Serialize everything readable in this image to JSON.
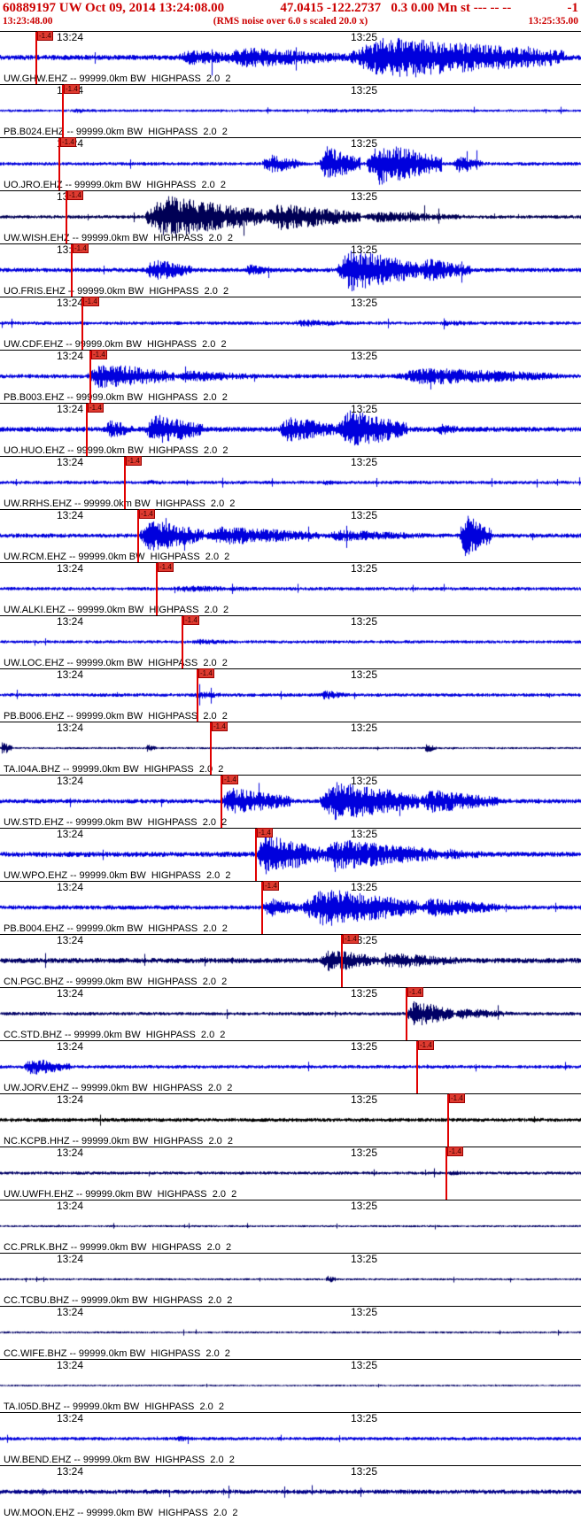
{
  "header": {
    "event_line": {
      "left": "60889197 UW Oct 09, 2014 13:24:08.00",
      "middle": "47.0415 -122.2737   0.3 0.00 Mn st --- -- --",
      "right": "-1"
    },
    "time_line": {
      "start": "13:23:48.00",
      "center": "(RMS noise over 6.0 s scaled 20.0 x)",
      "end": "13:25:35.00"
    }
  },
  "tick_labels": [
    "13:24",
    "13:25"
  ],
  "colors": {
    "header_red": "#cc0000",
    "pick_red": "#e00000",
    "trace_blue": "#0000dd",
    "trace_navy": "#000066",
    "trace_black": "#000000"
  },
  "traces": [
    {
      "label": "UW.GHW.EHZ -- 99999.0km BW  HIGHPASS  2.0  2",
      "color": "#0000dd",
      "pick": 0.061,
      "flag": "-1.4",
      "noise": 3,
      "bursts": [
        [
          0.3,
          0.45,
          8
        ],
        [
          0.38,
          0.6,
          11
        ],
        [
          0.6,
          0.97,
          21
        ]
      ]
    },
    {
      "label": "PB.B024.EHZ -- 99999.0km BW  HIGHPASS  2.0  2",
      "color": "#0000dd",
      "pick": 0.107,
      "flag": "-1.4",
      "noise": 1.5,
      "bursts": [
        [
          0.12,
          0.2,
          2.5
        ],
        [
          0.5,
          0.9,
          2
        ]
      ]
    },
    {
      "label": "UO.JRO.EHZ -- 99999.0km BW  HIGHPASS  2.0  2",
      "color": "#0000dd",
      "pick": 0.101,
      "flag": "-1.4",
      "noise": 2,
      "bursts": [
        [
          0.45,
          0.52,
          10
        ],
        [
          0.55,
          0.62,
          18
        ],
        [
          0.63,
          0.76,
          22
        ],
        [
          0.78,
          0.83,
          9
        ]
      ]
    },
    {
      "label": "UW.WISH.EHZ -- 99999.0km BW  HIGHPASS  2.0  2",
      "color": "#000055",
      "pick": 0.113,
      "flag": "-1.4",
      "noise": 2,
      "bursts": [
        [
          0.25,
          0.45,
          22
        ],
        [
          0.45,
          0.62,
          14
        ],
        [
          0.62,
          0.8,
          6
        ]
      ]
    },
    {
      "label": "UO.FRIS.EHZ -- 99999.0km BW  HIGHPASS  2.0  2",
      "color": "#0000dd",
      "pick": 0.122,
      "flag": "-1.4",
      "noise": 2.5,
      "bursts": [
        [
          0.25,
          0.33,
          12
        ],
        [
          0.42,
          0.47,
          6
        ],
        [
          0.58,
          0.72,
          22
        ],
        [
          0.72,
          0.81,
          12
        ]
      ]
    },
    {
      "label": "UW.CDF.EHZ -- 99999.0km BW  HIGHPASS  2.0  2",
      "color": "#0000dd",
      "pick": 0.14,
      "flag": "-1.4",
      "noise": 2,
      "bursts": [
        [
          0.5,
          0.62,
          4
        ],
        [
          0.75,
          0.85,
          3
        ]
      ]
    },
    {
      "label": "PB.B003.EHZ -- 99999.0km BW  HIGHPASS  2.0  2",
      "color": "#0000dd",
      "pick": 0.154,
      "flag": "-1.4",
      "noise": 2.5,
      "bursts": [
        [
          0.15,
          0.3,
          14
        ],
        [
          0.3,
          0.45,
          6
        ],
        [
          0.68,
          0.96,
          9
        ]
      ]
    },
    {
      "label": "UO.HUO.EHZ -- 99999.0km BW  HIGHPASS  2.0  2",
      "color": "#0000dd",
      "pick": 0.148,
      "flag": "-1.4",
      "noise": 3,
      "bursts": [
        [
          0.18,
          0.23,
          10
        ],
        [
          0.25,
          0.35,
          16
        ],
        [
          0.48,
          0.58,
          14
        ],
        [
          0.58,
          0.7,
          20
        ],
        [
          0.75,
          0.8,
          6
        ]
      ]
    },
    {
      "label": "UW.RRHS.EHZ -- 99999.0km BW  HIGHPASS  2.0  2",
      "color": "#0000dd",
      "pick": 0.213,
      "flag": "-1.4",
      "noise": 2,
      "bursts": [
        [
          0.25,
          0.3,
          3
        ],
        [
          0.55,
          0.6,
          3
        ]
      ]
    },
    {
      "label": "UW.RCM.EHZ -- 99999.0km BW  HIGHPASS  2.0  2",
      "color": "#0000dd",
      "pick": 0.236,
      "flag": "-1.4",
      "noise": 2.5,
      "bursts": [
        [
          0.24,
          0.35,
          17
        ],
        [
          0.35,
          0.55,
          10
        ],
        [
          0.55,
          0.75,
          6
        ],
        [
          0.79,
          0.845,
          22
        ]
      ]
    },
    {
      "label": "UW.ALKI.EHZ -- 99999.0km BW  HIGHPASS  2.0  2",
      "color": "#0000dd",
      "pick": 0.268,
      "flag": "-1.4",
      "noise": 2,
      "bursts": [
        [
          0.28,
          0.5,
          3.5
        ]
      ]
    },
    {
      "label": "UW.LOC.EHZ -- 99999.0km BW  HIGHPASS  2.0  2",
      "color": "#0000dd",
      "pick": 0.313,
      "flag": "-1.4",
      "noise": 1.8,
      "bursts": [
        [
          0.32,
          0.45,
          3
        ]
      ]
    },
    {
      "label": "PB.B006.EHZ -- 99999.0km BW  HIGHPASS  2.0  2",
      "color": "#0000dd",
      "pick": 0.338,
      "flag": "-1.4",
      "noise": 2,
      "bursts": [
        [
          0.33,
          0.4,
          4
        ],
        [
          0.55,
          0.6,
          5
        ]
      ]
    },
    {
      "label": "TA.I04A.BHZ -- 99999.0km BW  HIGHPASS  2.0  2",
      "color": "#000066",
      "pick": 0.361,
      "flag": "-1.4",
      "noise": 1.2,
      "bursts": [
        [
          0.0,
          0.02,
          7
        ],
        [
          0.25,
          0.27,
          4
        ],
        [
          0.73,
          0.75,
          5
        ]
      ]
    },
    {
      "label": "UW.STD.EHZ -- 99999.0km BW  HIGHPASS  2.0  2",
      "color": "#0000dd",
      "pick": 0.38,
      "flag": "-1.4",
      "noise": 2.5,
      "bursts": [
        [
          0.38,
          0.5,
          14
        ],
        [
          0.55,
          0.72,
          20
        ],
        [
          0.72,
          0.86,
          12
        ]
      ]
    },
    {
      "label": "UW.WPO.EHZ -- 99999.0km BW  HIGHPASS  2.0  2",
      "color": "#0000dd",
      "pick": 0.439,
      "flag": "-1.4",
      "noise": 3,
      "bursts": [
        [
          0.44,
          0.55,
          22
        ],
        [
          0.55,
          0.75,
          16
        ],
        [
          0.75,
          0.86,
          6
        ]
      ]
    },
    {
      "label": "PB.B004.EHZ -- 99999.0km BW  HIGHPASS  2.0  2",
      "color": "#0000dd",
      "pick": 0.45,
      "flag": "-1.4",
      "noise": 2.5,
      "bursts": [
        [
          0.45,
          0.52,
          10
        ],
        [
          0.52,
          0.72,
          20
        ],
        [
          0.72,
          0.86,
          10
        ]
      ]
    },
    {
      "label": "CN.PGC.BHZ -- 99999.0km BW  HIGHPASS  2.0  2",
      "color": "#000066",
      "pick": 0.587,
      "flag": "-1.4",
      "noise": 3,
      "bursts": [
        [
          0.55,
          0.65,
          12
        ],
        [
          0.65,
          0.8,
          8
        ]
      ]
    },
    {
      "label": "CC.STD.BHZ -- 99999.0km BW  HIGHPASS  2.0  2",
      "color": "#000066",
      "pick": 0.698,
      "flag": "-1.4",
      "noise": 2,
      "bursts": [
        [
          0.7,
          0.78,
          14
        ],
        [
          0.78,
          0.88,
          6
        ]
      ]
    },
    {
      "label": "UW.JORV.EHZ -- 99999.0km BW  HIGHPASS  2.0  2",
      "color": "#0000dd",
      "pick": 0.717,
      "flag": "-1.4",
      "noise": 2,
      "bursts": [
        [
          0.04,
          0.12,
          9
        ]
      ]
    },
    {
      "label": "NC.KCPB.HHZ -- 99999.0km BW  HIGHPASS  2.0  2",
      "color": "#000000",
      "pick": 0.77,
      "flag": "-1.4",
      "noise": 2.2,
      "bursts": []
    },
    {
      "label": "UW.UWFH.EHZ -- 99999.0km BW  HIGHPASS  2.0  2",
      "color": "#000066",
      "pick": 0.767,
      "flag": "-1.4",
      "noise": 1.8,
      "bursts": [
        [
          0.77,
          0.82,
          3
        ]
      ]
    },
    {
      "label": "CC.PRLK.BHZ -- 99999.0km BW  HIGHPASS  2.0  2",
      "color": "#000066",
      "pick": null,
      "flag": "",
      "noise": 1.2,
      "bursts": []
    },
    {
      "label": "CC.TCBU.BHZ -- 99999.0km BW  HIGHPASS  2.0  2",
      "color": "#000066",
      "pick": null,
      "flag": "",
      "noise": 1.2,
      "bursts": [
        [
          0.56,
          0.58,
          4
        ]
      ]
    },
    {
      "label": "CC.WIFE.BHZ -- 99999.0km BW  HIGHPASS  2.0  2",
      "color": "#000066",
      "pick": null,
      "flag": "",
      "noise": 1.2,
      "bursts": []
    },
    {
      "label": "TA.I05D.BHZ -- 99999.0km BW  HIGHPASS  2.0  2",
      "color": "#000066",
      "pick": null,
      "flag": "",
      "noise": 1,
      "bursts": []
    },
    {
      "label": "UW.BEND.EHZ -- 99999.0km BW  HIGHPASS  2.0  2",
      "color": "#0000dd",
      "pick": null,
      "flag": "",
      "noise": 2,
      "bursts": [
        [
          0.3,
          0.35,
          3
        ]
      ]
    },
    {
      "label": "UW.MOON.EHZ -- 99999.0km BW  HIGHPASS  2.0  2",
      "color": "#000088",
      "pick": null,
      "flag": "",
      "noise": 2.5,
      "bursts": []
    }
  ]
}
